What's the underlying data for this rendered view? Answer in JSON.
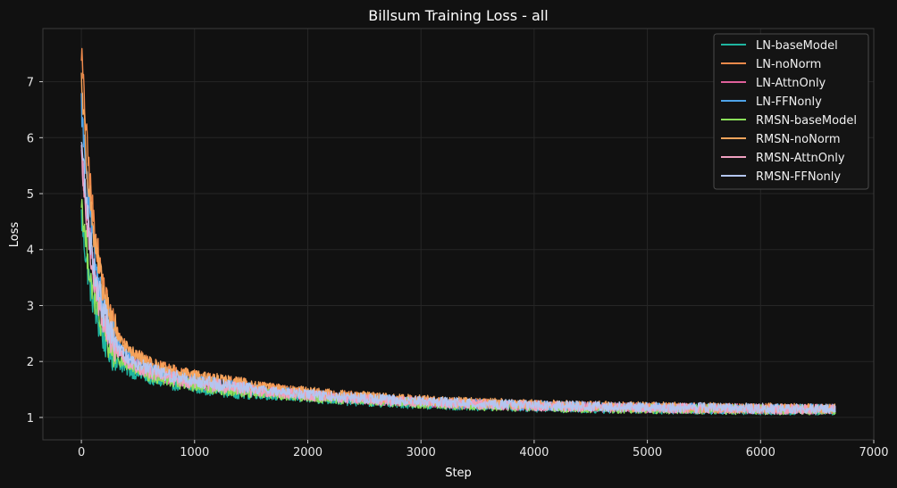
{
  "chart_data": {
    "type": "line",
    "title": "Billsum Training Loss - all",
    "xlabel": "Step",
    "ylabel": "Loss",
    "xlim": [
      -340,
      7000
    ],
    "ylim": [
      0.6,
      7.95
    ],
    "xticks": [
      0,
      1000,
      2000,
      3000,
      4000,
      5000,
      6000,
      7000
    ],
    "xtick_labels": [
      "0",
      "1000",
      "2000",
      "3000",
      "4000",
      "5000",
      "6000",
      "7000"
    ],
    "yticks": [
      1,
      2,
      3,
      4,
      5,
      6,
      7
    ],
    "ytick_labels": [
      "1",
      "2",
      "3",
      "4",
      "5",
      "6",
      "7"
    ],
    "grid": true,
    "legend_position": "top-right",
    "background": "#111111",
    "x_range": [
      0,
      6660
    ],
    "series": [
      {
        "name": "LN-baseModel",
        "color": "#1fb5a0",
        "start": 4.6,
        "mid": 1.7,
        "end": 1.12
      },
      {
        "name": "LN-noNorm",
        "color": "#f08a4b",
        "start": 7.6,
        "mid": 1.95,
        "end": 1.13
      },
      {
        "name": "LN-AttnOnly",
        "color": "#e0609a",
        "start": 5.8,
        "mid": 1.8,
        "end": 1.13
      },
      {
        "name": "LN-FFNonly",
        "color": "#4ea3e8",
        "start": 6.6,
        "mid": 1.85,
        "end": 1.13
      },
      {
        "name": "RMSN-baseModel",
        "color": "#8be05a",
        "start": 4.9,
        "mid": 1.75,
        "end": 1.12
      },
      {
        "name": "RMSN-noNorm",
        "color": "#f5a45c",
        "start": 7.1,
        "mid": 1.95,
        "end": 1.14
      },
      {
        "name": "RMSN-AttnOnly",
        "color": "#f0a0c0",
        "start": 5.6,
        "mid": 1.8,
        "end": 1.13
      },
      {
        "name": "RMSN-FFNonly",
        "color": "#b4c6f0",
        "start": 6.0,
        "mid": 1.85,
        "end": 1.14
      }
    ]
  }
}
